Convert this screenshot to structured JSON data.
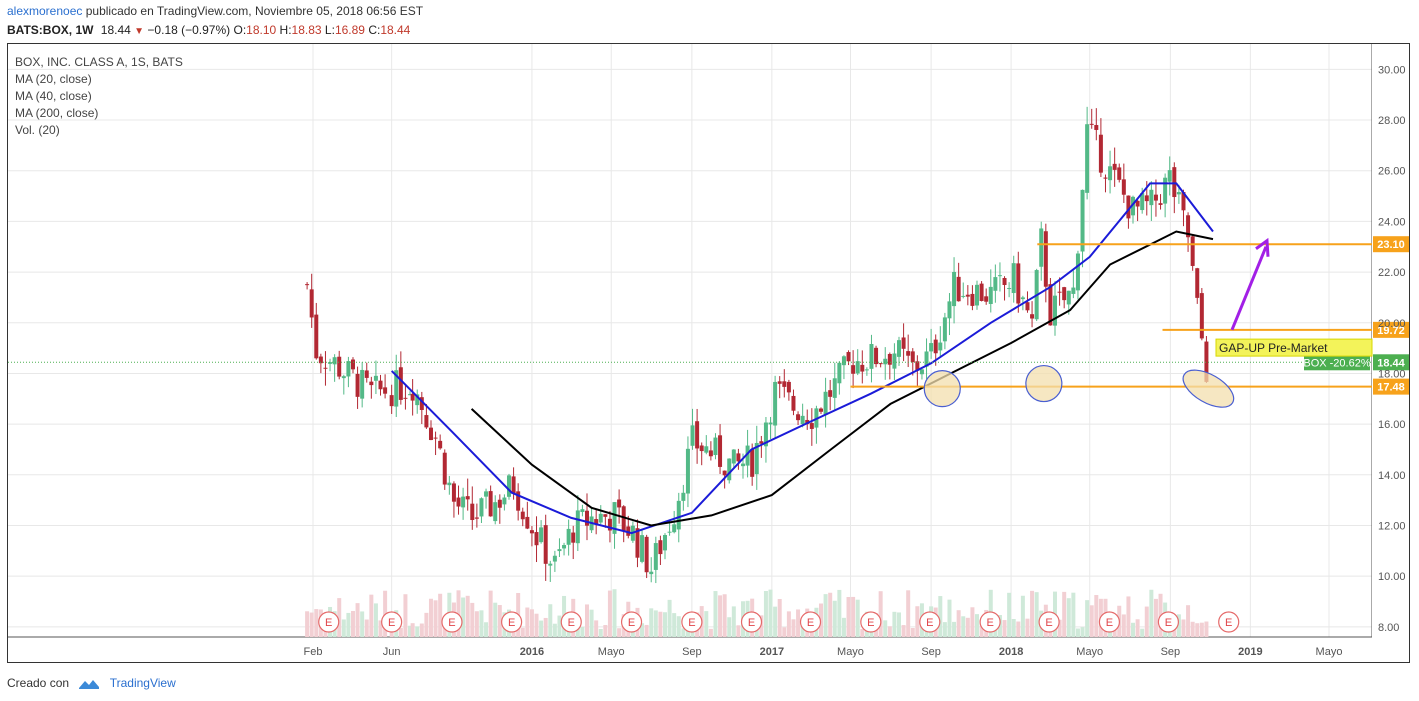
{
  "header": {
    "author": "alexmorenoec",
    "published": "publicado en TradingView.com, Noviembre 05, 2018 06:56 EST",
    "symbol": "BATS:BOX, 1W",
    "last": "18.44",
    "change": "−0.18 (−0.97%)",
    "o_label": "O:",
    "o": "18.10",
    "h_label": "H:",
    "h": "18.83",
    "l_label": "L:",
    "l": "16.89",
    "c_label": "C:",
    "c": "18.44"
  },
  "legend": {
    "title": "BOX, INC. CLASS A, 1S, BATS",
    "ma20": "MA (20, close)",
    "ma40": "MA (40, close)",
    "ma200": "MA (200, close)",
    "vol": "Vol. (20)"
  },
  "footer": {
    "created": "Creado con",
    "brand": "TradingView"
  },
  "colors": {
    "up": "#53b987",
    "down": "#b22833",
    "ma20": "#1b1bd8",
    "ma40": "#000000",
    "level": "#f7a21b",
    "annotation": "#a21fe6",
    "ellipse": "#f3dfae",
    "ellipse_stroke": "#4a5fd1",
    "box_label": "#4caf50",
    "gap_box": "#f3f35a"
  },
  "chart_data": {
    "type": "candlestick",
    "title": "BOX, INC. CLASS A, 1S, BATS",
    "timeframe": "1W",
    "ylim": [
      7.6,
      31.0
    ],
    "y_ticks": [
      "8.00",
      "10.00",
      "12.00",
      "14.00",
      "16.00",
      "18.00",
      "20.00",
      "22.00",
      "24.00",
      "26.00",
      "28.00",
      "30.00"
    ],
    "x_ticks": [
      "Feb",
      "Jun",
      "2016",
      "Mayo",
      "Sep",
      "2017",
      "Mayo",
      "Sep",
      "2018",
      "Mayo",
      "Sep",
      "2019",
      "Mayo"
    ],
    "x_tick_dates": [
      "2015-02-01",
      "2015-06-01",
      "2016-01-01",
      "2016-05-01",
      "2016-09-01",
      "2017-01-01",
      "2017-05-01",
      "2017-09-01",
      "2018-01-01",
      "2018-05-01",
      "2018-09-01",
      "2019-01-01",
      "2019-05-01"
    ],
    "date_range": [
      "2015-01-23",
      "2018-11-05"
    ],
    "weekly_close_path": [
      [
        "2015-01-23",
        21.5
      ],
      [
        "2015-02-06",
        18.9
      ],
      [
        "2015-03-06",
        18.4
      ],
      [
        "2015-04-03",
        17.8
      ],
      [
        "2015-05-01",
        17.2
      ],
      [
        "2015-06-01",
        17.4
      ],
      [
        "2015-07-03",
        17.6
      ],
      [
        "2015-08-07",
        15.5
      ],
      [
        "2015-09-04",
        12.9
      ],
      [
        "2015-10-02",
        12.3
      ],
      [
        "2015-11-06",
        12.9
      ],
      [
        "2015-12-04",
        13.6
      ],
      [
        "2016-01-08",
        11.6
      ],
      [
        "2016-02-05",
        10.4
      ],
      [
        "2016-03-04",
        11.9
      ],
      [
        "2016-04-01",
        12.3
      ],
      [
        "2016-05-06",
        12.4
      ],
      [
        "2016-06-03",
        11.7
      ],
      [
        "2016-07-01",
        10.3
      ],
      [
        "2016-08-05",
        12.6
      ],
      [
        "2016-09-02",
        15.3
      ],
      [
        "2016-10-07",
        14.8
      ],
      [
        "2016-11-04",
        14.3
      ],
      [
        "2016-12-02",
        14.6
      ],
      [
        "2017-01-06",
        17.3
      ],
      [
        "2017-02-03",
        16.7
      ],
      [
        "2017-03-03",
        16.4
      ],
      [
        "2017-04-07",
        17.5
      ],
      [
        "2017-05-05",
        18.5
      ],
      [
        "2017-06-02",
        18.6
      ],
      [
        "2017-07-07",
        18.9
      ],
      [
        "2017-08-04",
        18.2
      ],
      [
        "2017-09-01",
        18.7
      ],
      [
        "2017-10-06",
        21.4
      ],
      [
        "2017-11-03",
        21.3
      ],
      [
        "2017-12-01",
        21.1
      ],
      [
        "2018-01-05",
        21.7
      ],
      [
        "2018-02-02",
        19.9
      ],
      [
        "2018-02-16",
        23.2
      ],
      [
        "2018-03-02",
        20.4
      ],
      [
        "2018-04-06",
        21.2
      ],
      [
        "2018-04-27",
        27.6
      ],
      [
        "2018-06-01",
        25.9
      ],
      [
        "2018-07-06",
        24.4
      ],
      [
        "2018-08-03",
        24.6
      ],
      [
        "2018-08-31",
        25.7
      ],
      [
        "2018-09-28",
        23.4
      ],
      [
        "2018-10-12",
        20.5
      ],
      [
        "2018-10-26",
        18.2
      ],
      [
        "2018-11-05",
        18.44
      ]
    ],
    "moving_averages": [
      {
        "name": "MA (20, close)",
        "points": [
          [
            "2015-06-01",
            18.1
          ],
          [
            "2015-09-01",
            15.7
          ],
          [
            "2015-12-01",
            13.3
          ],
          [
            "2016-03-01",
            12.3
          ],
          [
            "2016-06-01",
            11.7
          ],
          [
            "2016-09-01",
            12.5
          ],
          [
            "2016-12-01",
            15.0
          ],
          [
            "2017-03-01",
            16.1
          ],
          [
            "2017-06-01",
            17.2
          ],
          [
            "2017-09-01",
            18.4
          ],
          [
            "2017-12-01",
            20.0
          ],
          [
            "2018-03-01",
            21.4
          ],
          [
            "2018-05-01",
            22.6
          ],
          [
            "2018-08-01",
            25.5
          ],
          [
            "2018-09-10",
            25.5
          ],
          [
            "2018-11-05",
            23.6
          ]
        ]
      },
      {
        "name": "MA (40, close)",
        "points": [
          [
            "2015-10-01",
            16.6
          ],
          [
            "2016-01-01",
            14.4
          ],
          [
            "2016-04-01",
            12.7
          ],
          [
            "2016-07-01",
            12.0
          ],
          [
            "2016-10-01",
            12.4
          ],
          [
            "2017-01-01",
            13.2
          ],
          [
            "2017-04-01",
            15.0
          ],
          [
            "2017-07-01",
            16.8
          ],
          [
            "2017-10-01",
            18.0
          ],
          [
            "2018-01-01",
            19.2
          ],
          [
            "2018-04-01",
            20.5
          ],
          [
            "2018-06-01",
            22.3
          ],
          [
            "2018-09-10",
            23.6
          ],
          [
            "2018-11-05",
            23.3
          ]
        ]
      }
    ],
    "horizontal_levels": [
      {
        "label": "23.10",
        "value": 23.1
      },
      {
        "label": "19.72",
        "value": 19.72
      },
      {
        "label": "17.48",
        "value": 17.48
      }
    ],
    "last_price": {
      "label": "18.44",
      "value": 18.44,
      "box_label": "BOX -20.62%"
    },
    "annotations": [
      {
        "text": "GAP-UP Pre-Market"
      }
    ],
    "earnings_marker": "E",
    "earnings_dates": [
      "2015-02-25",
      "2015-06-01",
      "2015-09-01",
      "2015-12-01",
      "2016-03-01",
      "2016-06-01",
      "2016-09-01",
      "2016-12-01",
      "2017-03-01",
      "2017-06-01",
      "2017-08-30",
      "2017-11-30",
      "2018-02-28",
      "2018-05-31",
      "2018-08-29",
      "2018-11-29"
    ]
  }
}
